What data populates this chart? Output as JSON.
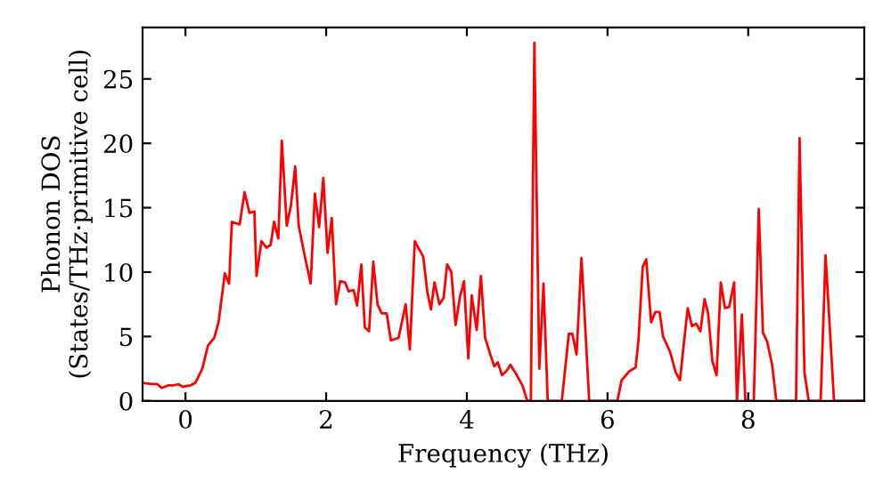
{
  "chart_data": {
    "type": "line",
    "xlabel": "Frequency (THz)",
    "ylabel": "Phonon DOS\n(States/THz·primitive cell)",
    "xlim": [
      -0.61,
      9.65
    ],
    "ylim": [
      0,
      29
    ],
    "xticks": [
      0,
      2,
      4,
      6,
      8
    ],
    "yticks": [
      0,
      5,
      10,
      15,
      20,
      25
    ],
    "grid": false,
    "marker": "none",
    "line_style": "solid",
    "series": [
      {
        "color": "#ff0000",
        "x": [
          -0.61,
          -0.48,
          -0.4,
          -0.34,
          -0.25,
          -0.17,
          -0.1,
          -0.04,
          0.07,
          0.14,
          0.24,
          0.32,
          0.41,
          0.47,
          0.56,
          0.62,
          0.66,
          0.77,
          0.84,
          0.91,
          0.98,
          1.01,
          1.08,
          1.15,
          1.21,
          1.26,
          1.32,
          1.37,
          1.44,
          1.5,
          1.56,
          1.61,
          1.69,
          1.78,
          1.84,
          1.9,
          1.96,
          2.02,
          2.08,
          2.14,
          2.2,
          2.27,
          2.32,
          2.39,
          2.44,
          2.5,
          2.55,
          2.61,
          2.67,
          2.73,
          2.79,
          2.86,
          2.92,
          3.03,
          3.13,
          3.19,
          3.26,
          3.38,
          3.44,
          3.49,
          3.54,
          3.61,
          3.67,
          3.72,
          3.78,
          3.84,
          3.9,
          3.96,
          4.02,
          4.07,
          4.14,
          4.2,
          4.26,
          4.34,
          4.39,
          4.44,
          4.5,
          4.56,
          4.62,
          4.71,
          4.79,
          4.86,
          4.91,
          4.96,
          5.03,
          5.09,
          5.15,
          5.35,
          5.45,
          5.5,
          5.56,
          5.63,
          5.74,
          6.14,
          6.2,
          6.31,
          6.4,
          6.44,
          6.5,
          6.55,
          6.62,
          6.68,
          6.74,
          6.79,
          6.89,
          6.97,
          7.03,
          7.09,
          7.14,
          7.2,
          7.26,
          7.32,
          7.38,
          7.43,
          7.49,
          7.55,
          7.61,
          7.67,
          7.73,
          7.8,
          7.84,
          7.91,
          7.96,
          8.08,
          8.15,
          8.21,
          8.27,
          8.34,
          8.4,
          8.68,
          8.73,
          8.8,
          8.86,
          9.03,
          9.1,
          9.22,
          9.65
        ],
        "values": [
          1.4,
          1.3,
          1.3,
          1.0,
          1.2,
          1.2,
          1.3,
          1.1,
          1.2,
          1.4,
          2.5,
          4.3,
          4.9,
          6.1,
          9.9,
          9.1,
          13.9,
          13.7,
          16.2,
          14.6,
          14.7,
          9.7,
          12.4,
          11.9,
          12.1,
          13.9,
          12.6,
          20.2,
          13.6,
          15.2,
          18.2,
          13.6,
          11.4,
          9.1,
          16.1,
          13.5,
          17.3,
          11.5,
          14.2,
          7.5,
          9.3,
          9.2,
          8.5,
          8.6,
          7.4,
          10.6,
          5.7,
          5.4,
          10.8,
          7.5,
          6.8,
          6.8,
          4.7,
          4.9,
          7.5,
          4.0,
          12.4,
          11.2,
          8.4,
          7.1,
          9.2,
          7.5,
          8.0,
          10.6,
          10.0,
          5.9,
          8.0,
          9.3,
          3.3,
          8.2,
          5.5,
          9.7,
          4.9,
          3.5,
          2.7,
          3.0,
          2.0,
          2.3,
          2.8,
          2.0,
          1.2,
          0,
          0,
          27.8,
          2.5,
          9.1,
          0,
          0,
          5.2,
          5.2,
          3.6,
          11.1,
          0,
          0,
          1.6,
          2.3,
          2.6,
          4.7,
          10.4,
          11.0,
          6.1,
          6.9,
          6.9,
          5.0,
          3.8,
          2.2,
          1.6,
          4.7,
          7.2,
          5.8,
          6.0,
          5.4,
          7.9,
          6.8,
          3.1,
          2.0,
          9.2,
          7.2,
          7.3,
          9.2,
          0,
          6.7,
          0,
          0,
          14.9,
          5.3,
          4.6,
          2.8,
          0,
          0,
          20.4,
          2.2,
          0,
          0,
          11.3,
          0,
          0
        ]
      }
    ]
  }
}
